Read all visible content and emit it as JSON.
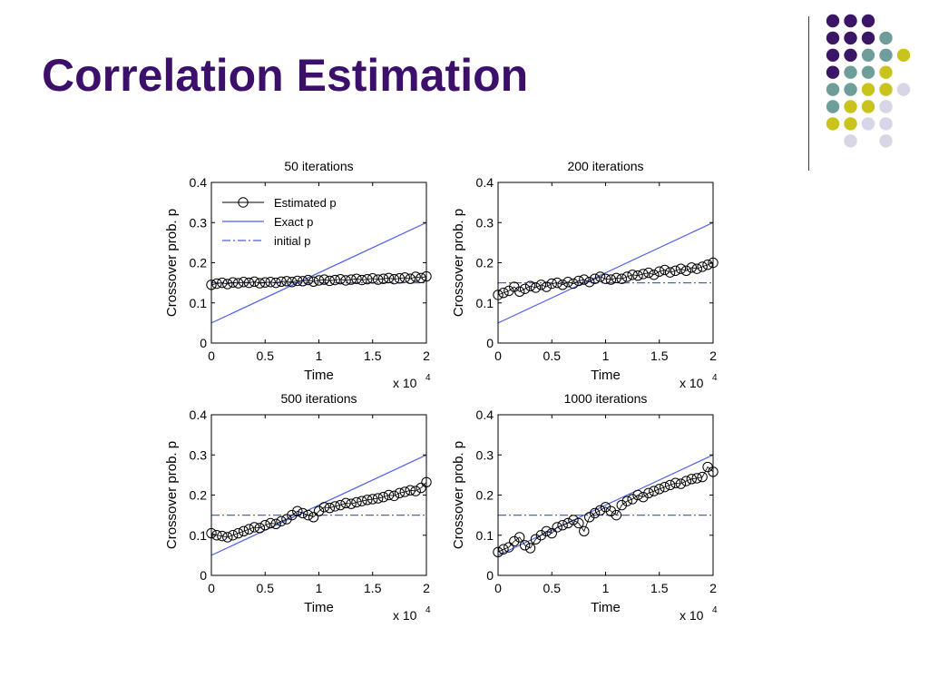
{
  "slide": {
    "title": "Correlation Estimation",
    "colors": {
      "title": "#3b0f6a",
      "dots": [
        "#3b1566",
        "#6f9e9a",
        "#c9c41c",
        "#d6d6e6"
      ]
    }
  },
  "chart_data": [
    {
      "type": "line",
      "title": "50 iterations",
      "xlabel": "Time",
      "ylabel": "Crossover prob. p",
      "x_multiplier_label": "x 10",
      "x_multiplier_exp": "4",
      "xlim": [
        0,
        2
      ],
      "ylim": [
        0,
        0.4
      ],
      "xticks": [
        "0",
        "0.5",
        "1",
        "1.5",
        "2"
      ],
      "yticks": [
        "0",
        "0.1",
        "0.2",
        "0.3",
        "0.4"
      ],
      "legend": {
        "placement": "top-left",
        "entries": [
          "Estimated p",
          "Exact p",
          "initial p"
        ]
      },
      "series": [
        {
          "name": "Estimated p",
          "style": "circles",
          "color": "#000000",
          "x": [
            0.0,
            0.05,
            0.1,
            0.15,
            0.2,
            0.25,
            0.3,
            0.35,
            0.4,
            0.45,
            0.5,
            0.55,
            0.6,
            0.65,
            0.7,
            0.75,
            0.8,
            0.85,
            0.9,
            0.95,
            1.0,
            1.05,
            1.1,
            1.15,
            1.2,
            1.25,
            1.3,
            1.35,
            1.4,
            1.45,
            1.5,
            1.55,
            1.6,
            1.65,
            1.7,
            1.75,
            1.8,
            1.85,
            1.9,
            1.95,
            2.0
          ],
          "y": [
            0.145,
            0.148,
            0.15,
            0.147,
            0.151,
            0.149,
            0.152,
            0.15,
            0.153,
            0.149,
            0.151,
            0.152,
            0.15,
            0.153,
            0.154,
            0.152,
            0.155,
            0.154,
            0.157,
            0.153,
            0.156,
            0.158,
            0.155,
            0.157,
            0.159,
            0.156,
            0.158,
            0.16,
            0.157,
            0.159,
            0.161,
            0.158,
            0.16,
            0.162,
            0.159,
            0.161,
            0.163,
            0.16,
            0.165,
            0.162,
            0.166
          ]
        },
        {
          "name": "Exact p",
          "style": "solid",
          "color": "#4a5ee8",
          "x": [
            0,
            2
          ],
          "y": [
            0.05,
            0.3
          ]
        },
        {
          "name": "initial p",
          "style": "dashdot",
          "color": "#4a5ee8",
          "x": [
            0,
            2
          ],
          "y": [
            0.15,
            0.15
          ]
        }
      ]
    },
    {
      "type": "line",
      "title": "200 iterations",
      "xlabel": "Time",
      "ylabel": "Crossover prob. p",
      "x_multiplier_label": "x 10",
      "x_multiplier_exp": "4",
      "xlim": [
        0,
        2
      ],
      "ylim": [
        0,
        0.4
      ],
      "xticks": [
        "0",
        "0.5",
        "1",
        "1.5",
        "2"
      ],
      "yticks": [
        "0",
        "0.1",
        "0.2",
        "0.3",
        "0.4"
      ],
      "series": [
        {
          "name": "Estimated p",
          "style": "circles",
          "color": "#000000",
          "x": [
            0.0,
            0.05,
            0.1,
            0.15,
            0.2,
            0.25,
            0.3,
            0.35,
            0.4,
            0.45,
            0.5,
            0.55,
            0.6,
            0.65,
            0.7,
            0.75,
            0.8,
            0.85,
            0.9,
            0.95,
            1.0,
            1.05,
            1.1,
            1.15,
            1.2,
            1.25,
            1.3,
            1.35,
            1.4,
            1.45,
            1.5,
            1.55,
            1.6,
            1.65,
            1.7,
            1.75,
            1.8,
            1.85,
            1.9,
            1.95,
            2.0
          ],
          "y": [
            0.12,
            0.125,
            0.13,
            0.14,
            0.128,
            0.135,
            0.142,
            0.138,
            0.145,
            0.14,
            0.148,
            0.15,
            0.145,
            0.152,
            0.148,
            0.155,
            0.158,
            0.152,
            0.16,
            0.165,
            0.16,
            0.158,
            0.162,
            0.16,
            0.165,
            0.17,
            0.168,
            0.172,
            0.175,
            0.17,
            0.178,
            0.182,
            0.176,
            0.18,
            0.185,
            0.18,
            0.188,
            0.185,
            0.19,
            0.195,
            0.2
          ]
        },
        {
          "name": "Exact p",
          "style": "solid",
          "color": "#4a5ee8",
          "x": [
            0,
            2
          ],
          "y": [
            0.05,
            0.3
          ]
        },
        {
          "name": "initial p",
          "style": "dashdot",
          "color": "#4a5ee8",
          "x": [
            0,
            2
          ],
          "y": [
            0.15,
            0.15
          ]
        }
      ]
    },
    {
      "type": "line",
      "title": "500 iterations",
      "xlabel": "Time",
      "ylabel": "Crossover prob. p",
      "x_multiplier_label": "x 10",
      "x_multiplier_exp": "4",
      "xlim": [
        0,
        2
      ],
      "ylim": [
        0,
        0.4
      ],
      "xticks": [
        "0",
        "0.5",
        "1",
        "1.5",
        "2"
      ],
      "yticks": [
        "0",
        "0.1",
        "0.2",
        "0.3",
        "0.4"
      ],
      "series": [
        {
          "name": "Estimated p",
          "style": "circles",
          "color": "#000000",
          "x": [
            0.0,
            0.05,
            0.1,
            0.15,
            0.2,
            0.25,
            0.3,
            0.35,
            0.4,
            0.45,
            0.5,
            0.55,
            0.6,
            0.65,
            0.7,
            0.75,
            0.8,
            0.85,
            0.9,
            0.95,
            1.0,
            1.05,
            1.1,
            1.15,
            1.2,
            1.25,
            1.3,
            1.35,
            1.4,
            1.45,
            1.5,
            1.55,
            1.6,
            1.65,
            1.7,
            1.75,
            1.8,
            1.85,
            1.9,
            1.95,
            2.0
          ],
          "y": [
            0.105,
            0.1,
            0.098,
            0.095,
            0.1,
            0.105,
            0.11,
            0.115,
            0.12,
            0.118,
            0.125,
            0.13,
            0.128,
            0.135,
            0.14,
            0.15,
            0.16,
            0.155,
            0.15,
            0.145,
            0.16,
            0.17,
            0.168,
            0.172,
            0.175,
            0.18,
            0.178,
            0.182,
            0.185,
            0.188,
            0.19,
            0.192,
            0.195,
            0.2,
            0.198,
            0.205,
            0.208,
            0.212,
            0.21,
            0.218,
            0.232
          ]
        },
        {
          "name": "Exact p",
          "style": "solid",
          "color": "#4a5ee8",
          "x": [
            0,
            2
          ],
          "y": [
            0.05,
            0.3
          ]
        },
        {
          "name": "initial p",
          "style": "dashdot",
          "color": "#4a5ee8",
          "x": [
            0,
            2
          ],
          "y": [
            0.15,
            0.15
          ]
        }
      ]
    },
    {
      "type": "line",
      "title": "1000 iterations",
      "xlabel": "Time",
      "ylabel": "Crossover prob. p",
      "x_multiplier_label": "x 10",
      "x_multiplier_exp": "4",
      "xlim": [
        0,
        2
      ],
      "ylim": [
        0,
        0.4
      ],
      "xticks": [
        "0",
        "0.5",
        "1",
        "1.5",
        "2"
      ],
      "yticks": [
        "0",
        "0.1",
        "0.2",
        "0.3",
        "0.4"
      ],
      "series": [
        {
          "name": "Estimated p",
          "style": "circles",
          "color": "#000000",
          "x": [
            0.0,
            0.05,
            0.1,
            0.15,
            0.2,
            0.25,
            0.3,
            0.35,
            0.4,
            0.45,
            0.5,
            0.55,
            0.6,
            0.65,
            0.7,
            0.75,
            0.8,
            0.85,
            0.9,
            0.95,
            1.0,
            1.05,
            1.1,
            1.15,
            1.2,
            1.25,
            1.3,
            1.35,
            1.4,
            1.45,
            1.5,
            1.55,
            1.6,
            1.65,
            1.7,
            1.75,
            1.8,
            1.85,
            1.9,
            1.95,
            2.0
          ],
          "y": [
            0.058,
            0.065,
            0.07,
            0.085,
            0.095,
            0.075,
            0.068,
            0.09,
            0.1,
            0.11,
            0.105,
            0.12,
            0.125,
            0.13,
            0.138,
            0.13,
            0.11,
            0.145,
            0.155,
            0.162,
            0.17,
            0.16,
            0.15,
            0.175,
            0.185,
            0.19,
            0.2,
            0.195,
            0.205,
            0.21,
            0.215,
            0.22,
            0.225,
            0.23,
            0.228,
            0.235,
            0.24,
            0.242,
            0.245,
            0.27,
            0.258
          ]
        },
        {
          "name": "Exact p",
          "style": "solid",
          "color": "#4a5ee8",
          "x": [
            0,
            2
          ],
          "y": [
            0.05,
            0.3
          ]
        },
        {
          "name": "initial p",
          "style": "dashdot",
          "color": "#4a5ee8",
          "x": [
            0,
            2
          ],
          "y": [
            0.15,
            0.15
          ]
        }
      ]
    }
  ]
}
